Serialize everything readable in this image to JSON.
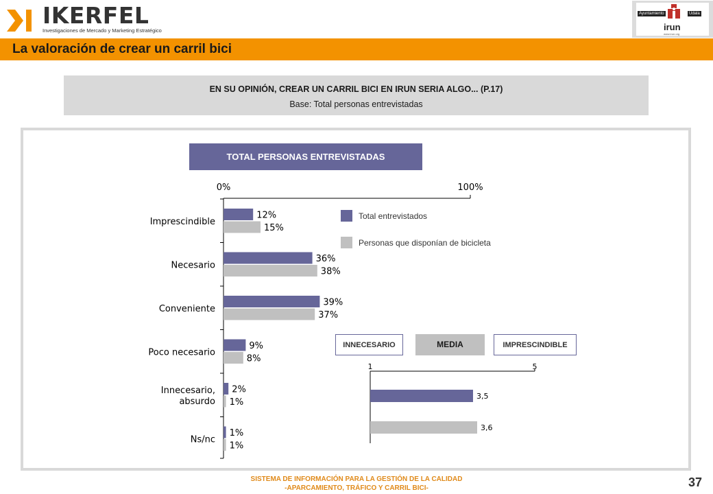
{
  "header": {
    "brand_name": "IKERFEL",
    "brand_tagline": "Investigaciones de Mercado y Marketing Estratégico",
    "partner_logo": {
      "left_tag": "Ayuntamiento",
      "right_tag": "Udala",
      "word": "irun",
      "url": "www.irun.org"
    },
    "slide_title": "La valoración de crear un carril bici"
  },
  "question": {
    "text": "EN SU OPINIÓN, CREAR UN CARRIL BICI EN IRUN SERIA ALGO... (P.17)",
    "base": "Base: Total personas entrevistadas"
  },
  "chart_header": "TOTAL PERSONAS ENTREVISTADAS",
  "chart_data": [
    {
      "type": "bar",
      "orientation": "horizontal",
      "categories": [
        "Imprescindible",
        "Necesario",
        "Conveniente",
        "Poco necesario",
        "Innecesario, absurdo",
        "Ns/nc"
      ],
      "category_lines": [
        [
          "Imprescindible"
        ],
        [
          "Necesario"
        ],
        [
          "Conveniente"
        ],
        [
          "Poco necesario"
        ],
        [
          "Innecesario,",
          "absurdo"
        ],
        [
          "Ns/nc"
        ]
      ],
      "series": [
        {
          "name": "Total entrevistados",
          "values": [
            12,
            36,
            39,
            9,
            2,
            1
          ],
          "labels": [
            "12%",
            "36%",
            "39%",
            "9%",
            "2%",
            "1%"
          ],
          "color": "#666699"
        },
        {
          "name": "Personas que disponían de bicicleta",
          "values": [
            15,
            38,
            37,
            8,
            1,
            1
          ],
          "labels": [
            "15%",
            "38%",
            "37%",
            "8%",
            "1%",
            "1%"
          ],
          "color": "#c0c0c0"
        }
      ],
      "xlim": [
        0,
        100
      ],
      "axis_labels": [
        "0%",
        "100%"
      ],
      "legend_position": "right",
      "grid": false
    },
    {
      "type": "bar",
      "orientation": "horizontal",
      "title": "MEDIA",
      "scale_labels": {
        "low": "INNECESARIO",
        "high": "IMPRESCINDIBLE"
      },
      "xlim": [
        1,
        5
      ],
      "axis_labels": [
        "1",
        "5"
      ],
      "series": [
        {
          "name": "Total entrevistados",
          "values": [
            3.5
          ],
          "labels": [
            "3,5"
          ],
          "color": "#666699"
        },
        {
          "name": "Personas que disponían de bicicleta",
          "values": [
            3.6
          ],
          "labels": [
            "3,6"
          ],
          "color": "#c0c0c0"
        }
      ],
      "grid": false
    }
  ],
  "footer": {
    "line1": "SISTEMA DE INFORMACIÓN PARA LA GESTIÓN DE LA CALIDAD",
    "line2": "-APARCAMIENTO, TRÁFICO Y CARRIL BICI-",
    "page": "37"
  }
}
